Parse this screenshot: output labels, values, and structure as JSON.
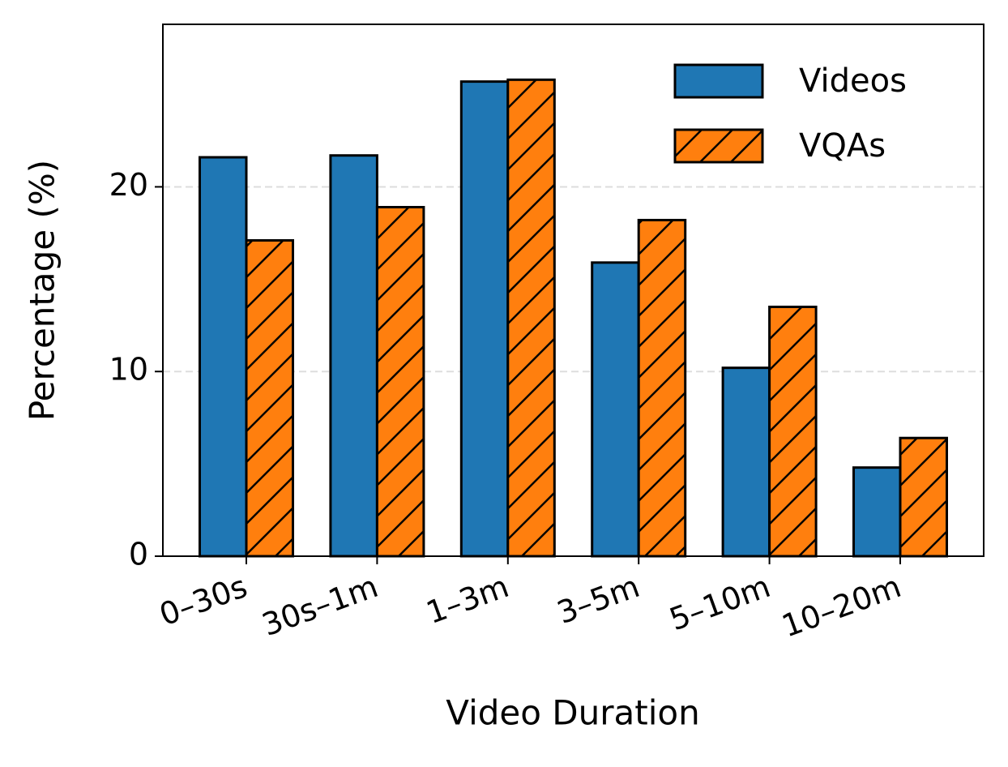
{
  "chart_data": {
    "type": "bar",
    "x_label": "Video Duration",
    "y_label": "Percentage (%)",
    "categories": [
      "0–30s",
      "30s–1m",
      "1–3m",
      "3–5m",
      "5–10m",
      "10–20m"
    ],
    "series": [
      {
        "name": "Videos",
        "color": "#1f77b4",
        "hatch": null,
        "values": [
          21.6,
          21.7,
          25.7,
          15.9,
          10.2,
          4.8
        ]
      },
      {
        "name": "VQAs",
        "color": "#ff7f0e",
        "hatch": "/",
        "values": [
          17.1,
          18.9,
          25.8,
          18.2,
          13.5,
          6.4
        ]
      }
    ],
    "ylim": [
      0,
      28.8
    ],
    "yticks": [
      0,
      10,
      20
    ],
    "grid": true,
    "legend": "upper right"
  }
}
